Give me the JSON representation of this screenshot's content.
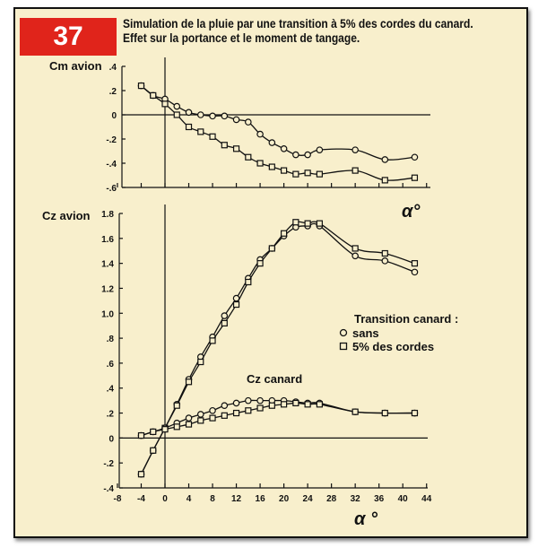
{
  "figure_number": "37",
  "title_line1": "Simulation de la pluie par une transition à 5% des cordes du canard.",
  "title_line2": "Effet sur la portance et le moment de tangage.",
  "colors": {
    "badge": "#e0241b",
    "background": "#f8efcc",
    "ink": "#111111"
  },
  "chart_data": [
    {
      "type": "line",
      "ylabel": "Cm avion",
      "xlabel": "α°",
      "ylim": [
        -0.6,
        0.4
      ],
      "xlim": [
        -8,
        44
      ],
      "yticks": [
        ".4",
        ".2",
        "0",
        "-.2",
        "-.4",
        "-.6"
      ],
      "ytick_values": [
        0.4,
        0.2,
        0,
        -0.2,
        -0.4,
        -0.6
      ],
      "x": [
        -4,
        -2,
        0,
        2,
        4,
        6,
        8,
        10,
        12,
        14,
        16,
        18,
        20,
        22,
        24,
        26,
        32,
        37,
        42
      ],
      "series": [
        {
          "marker": "circle",
          "values": [
            0.24,
            0.16,
            0.13,
            0.07,
            0.02,
            0.0,
            -0.01,
            -0.01,
            -0.04,
            -0.06,
            -0.16,
            -0.23,
            -0.28,
            -0.33,
            -0.33,
            -0.29,
            -0.29,
            -0.37,
            -0.35
          ]
        },
        {
          "marker": "square",
          "values": [
            0.24,
            0.16,
            0.09,
            0.0,
            -0.1,
            -0.14,
            -0.18,
            -0.25,
            -0.28,
            -0.35,
            -0.4,
            -0.43,
            -0.46,
            -0.49,
            -0.48,
            -0.49,
            -0.46,
            -0.54,
            -0.52
          ]
        }
      ]
    },
    {
      "type": "line",
      "ylabel": "Cz avion",
      "xlabel": "α °",
      "ylim": [
        -0.4,
        1.8
      ],
      "xlim": [
        -8,
        44
      ],
      "yticks": [
        "1.8",
        "1.6",
        "1.4",
        "1.2",
        "1.0",
        ".8",
        ".6",
        ".4",
        ".2",
        "0",
        "-.2",
        "-.4"
      ],
      "ytick_values": [
        1.8,
        1.6,
        1.4,
        1.2,
        1.0,
        0.8,
        0.6,
        0.4,
        0.2,
        0,
        -0.2,
        -0.4
      ],
      "xticks": [
        "-8",
        "-4",
        "0",
        "4",
        "8",
        "12",
        "16",
        "20",
        "24",
        "28",
        "32",
        "36",
        "40",
        "44"
      ],
      "xtick_values": [
        -8,
        -4,
        0,
        4,
        8,
        12,
        16,
        20,
        24,
        28,
        32,
        36,
        40,
        44
      ],
      "x": [
        -4,
        -2,
        0,
        2,
        4,
        6,
        8,
        10,
        12,
        14,
        16,
        18,
        20,
        22,
        24,
        26,
        32,
        37,
        42
      ],
      "series": [
        {
          "marker": "circle",
          "values": [
            -0.29,
            -0.1,
            0.08,
            0.27,
            0.47,
            0.65,
            0.81,
            0.98,
            1.12,
            1.28,
            1.43,
            1.52,
            1.62,
            1.69,
            1.7,
            1.7,
            1.46,
            1.42,
            1.33
          ]
        },
        {
          "marker": "square",
          "values": [
            -0.29,
            -0.1,
            0.08,
            0.26,
            0.45,
            0.61,
            0.78,
            0.92,
            1.07,
            1.25,
            1.4,
            1.52,
            1.64,
            1.73,
            1.72,
            1.72,
            1.52,
            1.48,
            1.4
          ]
        },
        {
          "marker": "circle",
          "values": [
            0.02,
            0.05,
            0.08,
            0.12,
            0.16,
            0.19,
            0.22,
            0.26,
            0.28,
            0.3,
            0.3,
            0.3,
            0.3,
            0.29,
            0.28,
            0.28,
            0.21,
            0.2,
            0.2
          ]
        },
        {
          "marker": "square",
          "values": [
            0.02,
            0.05,
            0.07,
            0.09,
            0.11,
            0.14,
            0.16,
            0.18,
            0.2,
            0.22,
            0.24,
            0.26,
            0.27,
            0.28,
            0.27,
            0.27,
            0.21,
            0.2,
            0.2
          ]
        }
      ],
      "annotation": "Cz canard",
      "legend": {
        "title": "Transition canard :",
        "entries": [
          {
            "marker": "circle",
            "label": "sans"
          },
          {
            "marker": "square",
            "label": "5% des cordes"
          }
        ],
        "placement": "right"
      }
    }
  ]
}
